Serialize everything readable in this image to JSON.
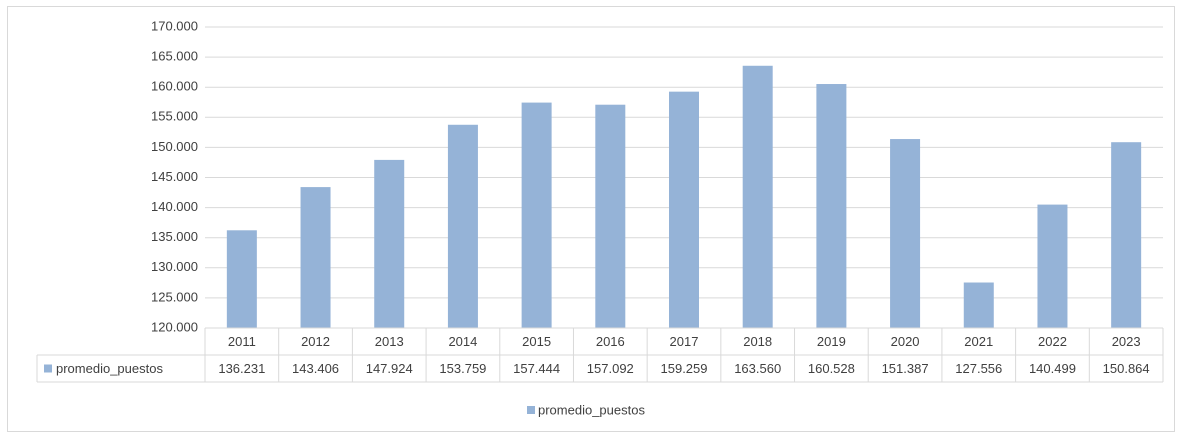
{
  "chart_data": {
    "type": "bar",
    "categories": [
      "2011",
      "2012",
      "2013",
      "2014",
      "2015",
      "2016",
      "2017",
      "2018",
      "2019",
      "2020",
      "2021",
      "2022",
      "2023"
    ],
    "series": [
      {
        "name": "promedio_puestos",
        "color": "#95b3d7",
        "values": [
          136231,
          143406,
          147924,
          153759,
          157444,
          157092,
          159259,
          163560,
          160528,
          151387,
          127556,
          140499,
          150864
        ],
        "value_labels": [
          "136.231",
          "143.406",
          "147.924",
          "153.759",
          "157.444",
          "157.092",
          "159.259",
          "163.560",
          "160.528",
          "151.387",
          "127.556",
          "140.499",
          "150.864"
        ]
      }
    ],
    "ylim": [
      120000,
      170000
    ],
    "yticks": [
      {
        "value": 120000,
        "label": "120.000"
      },
      {
        "value": 125000,
        "label": "125.000"
      },
      {
        "value": 130000,
        "label": "130.000"
      },
      {
        "value": 135000,
        "label": "135.000"
      },
      {
        "value": 140000,
        "label": "140.000"
      },
      {
        "value": 145000,
        "label": "145.000"
      },
      {
        "value": 150000,
        "label": "150.000"
      },
      {
        "value": 155000,
        "label": "155.000"
      },
      {
        "value": 160000,
        "label": "160.000"
      },
      {
        "value": 165000,
        "label": "165.000"
      },
      {
        "value": 170000,
        "label": "170.000"
      }
    ],
    "grid": true,
    "legend": "bottom"
  }
}
